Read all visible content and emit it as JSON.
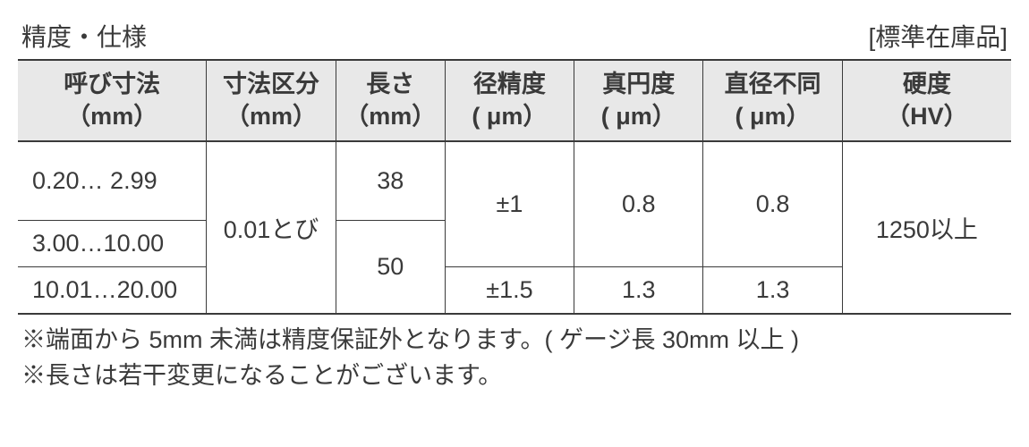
{
  "header": {
    "title": "精度・仕様",
    "subtitle": "[標準在庫品]"
  },
  "table": {
    "columns": {
      "nominal": {
        "line1": "呼び寸法",
        "line2": "（mm）"
      },
      "step": {
        "line1": "寸法区分",
        "line2": "（mm）"
      },
      "length": {
        "line1": "長さ",
        "line2": "（mm）"
      },
      "diam": {
        "line1": "径精度",
        "line2": "( μm）"
      },
      "round": {
        "line1": "真円度",
        "line2": "( μm）"
      },
      "diff": {
        "line1": "直径不同",
        "line2": "( μm）"
      },
      "hard": {
        "line1": "硬度",
        "line2": "（HV）"
      }
    },
    "rows": {
      "r1": {
        "nominal": "0.20… 2.99"
      },
      "r2": {
        "nominal": "3.00…10.00"
      },
      "r3": {
        "nominal": "10.01…20.00"
      }
    },
    "merged": {
      "step_all": "0.01とび",
      "length_1": "38",
      "length_23": "50",
      "diam_12": "±1",
      "diam_3": "±1.5",
      "round_12": "0.8",
      "round_3": "1.3",
      "diff_12": "0.8",
      "diff_3": "1.3",
      "hard_all": "1250以上"
    }
  },
  "notes": {
    "n1": "※端面から 5mm 未満は精度保証外となります。( ゲージ長 30mm 以上 )",
    "n2": "※長さは若干変更になることがございます。"
  }
}
